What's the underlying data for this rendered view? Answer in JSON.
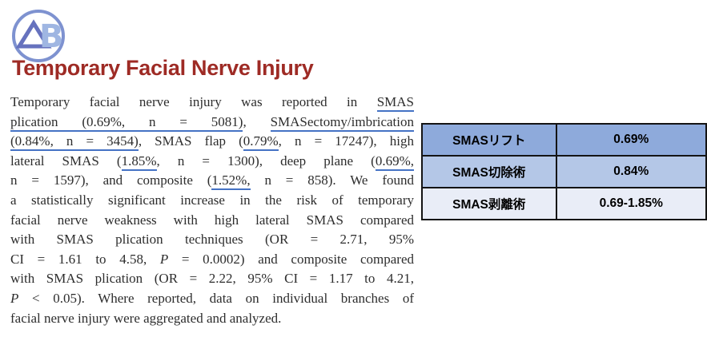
{
  "logo": {
    "letters": "AB",
    "circle_color": "#7E92D0",
    "a_color": "#6672BE",
    "b_color": "#9FB6E2"
  },
  "title": "Temporary Facial Nerve Injury",
  "colors": {
    "title_red": "#9E2B25",
    "underline_blue": "#4472C4",
    "body_text": "#2d2d2d",
    "table_border": "#141414",
    "row_backgrounds": [
      "#8EAADB",
      "#B4C7E7",
      "#E9EDF7"
    ]
  },
  "article": {
    "lines": [
      {
        "segments": [
          {
            "t": "Temporary facial nerve injury was reported in "
          },
          {
            "t": "SMAS",
            "u": 1
          }
        ]
      },
      {
        "segments": [
          {
            "t": "plication (0.69%, n = 5081)",
            "u": 1
          },
          {
            "t": ", "
          },
          {
            "t": "SMASectomy/imbrication",
            "u": 1
          }
        ]
      },
      {
        "segments": [
          {
            "t": "(0.84%, n = 3454)",
            "u": 1
          },
          {
            "t": ", SMAS flap ("
          },
          {
            "t": "0.79%",
            "u": 1
          },
          {
            "t": ", n = 17247), high"
          }
        ]
      },
      {
        "segments": [
          {
            "t": "lateral SMAS ("
          },
          {
            "t": "1.85%",
            "u": 1
          },
          {
            "t": ", n = 1300), deep plane ("
          },
          {
            "t": "0.69%,",
            "u": 1
          }
        ]
      },
      {
        "segments": [
          {
            "t": "n = 1597), and composite ("
          },
          {
            "t": "1.52%,",
            "u": 1
          },
          {
            "t": " n = 858). We found"
          }
        ]
      },
      {
        "segments": [
          {
            "t": "a statistically significant increase in the risk of temporary"
          }
        ]
      },
      {
        "segments": [
          {
            "t": "facial nerve weakness with high lateral SMAS compared"
          }
        ]
      },
      {
        "segments": [
          {
            "t": "with SMAS plication techniques (OR = 2.71, 95%"
          }
        ]
      },
      {
        "segments": [
          {
            "t": "CI = 1.61 to 4.58, "
          },
          {
            "t": "P",
            "i": 1
          },
          {
            "t": " = 0.0002) and composite compared"
          }
        ]
      },
      {
        "segments": [
          {
            "t": "with SMAS plication (OR = 2.22, 95% CI = 1.17 to 4.21,"
          }
        ]
      },
      {
        "segments": [
          {
            "t": "P",
            "i": 1
          },
          {
            "t": " < 0.05). Where reported, data on individual branches of"
          }
        ]
      },
      {
        "segments": [
          {
            "t": "facial nerve injury were aggregated and analyzed."
          }
        ],
        "last": true
      }
    ]
  },
  "table": {
    "rows": [
      {
        "label": "SMASリフト",
        "value": "0.69%"
      },
      {
        "label": "SMAS切除術",
        "value": "0.84%"
      },
      {
        "label": "SMAS剥離術",
        "value": "0.69-1.85%"
      }
    ]
  }
}
